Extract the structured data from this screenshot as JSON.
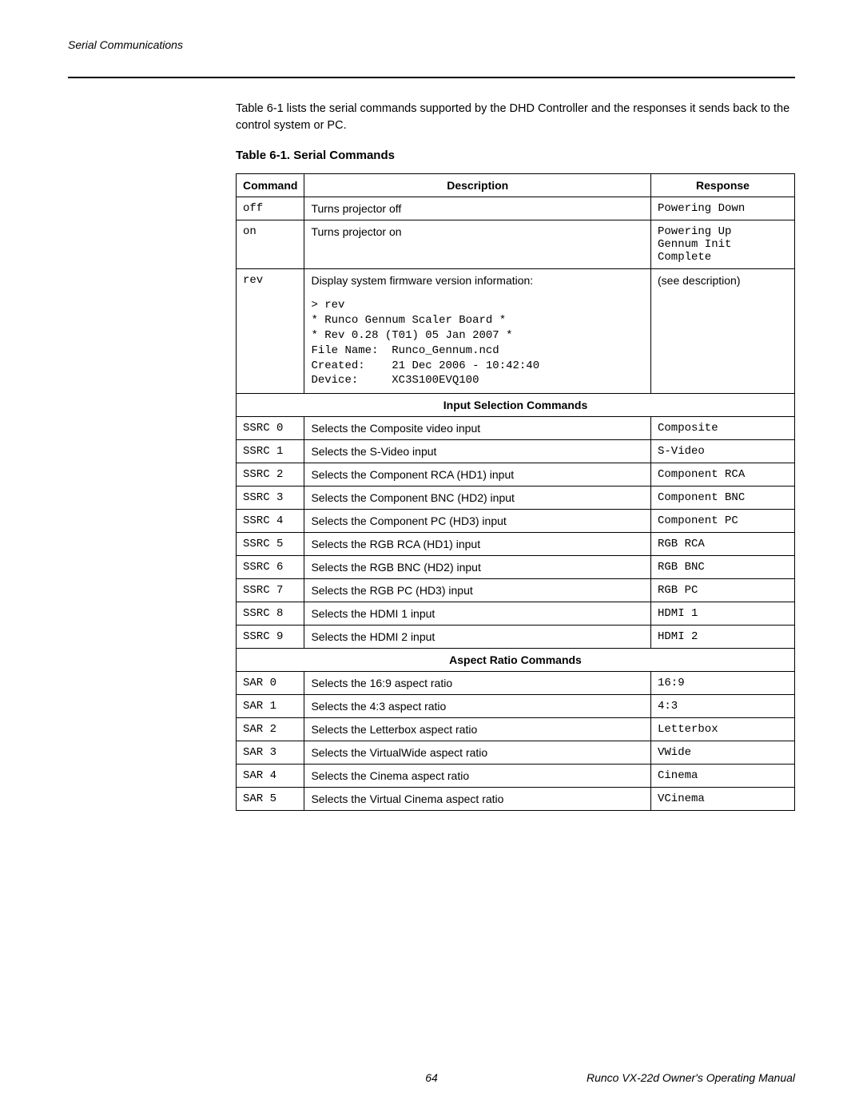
{
  "header": {
    "section": "Serial Communications"
  },
  "intro": "Table 6-1 lists the serial commands supported by the DHD Controller and the responses it sends back to the control system or PC.",
  "table_title": "Table 6-1. Serial Commands",
  "columns": {
    "cmd": "Command",
    "desc": "Description",
    "resp": "Response"
  },
  "rows_main": [
    {
      "cmd": "off",
      "desc": "Turns projector off",
      "resp": "Powering Down"
    },
    {
      "cmd": "on",
      "desc": "Turns projector on",
      "resp": "Powering Up\nGennum Init\nComplete"
    }
  ],
  "rev_row": {
    "cmd": "rev",
    "desc_intro": "Display system firmware version information:",
    "desc_block": "> rev\n* Runco Gennum Scaler Board *\n* Rev 0.28 (T01) 05 Jan 2007 *\nFile Name:  Runco_Gennum.ncd\nCreated:    21 Dec 2006 - 10:42:40\nDevice:     XC3S100EVQ100",
    "resp": "(see description)"
  },
  "section_input": "Input Selection Commands",
  "rows_input": [
    {
      "cmd": "SSRC 0",
      "desc": "Selects the Composite video input",
      "resp": "Composite"
    },
    {
      "cmd": "SSRC 1",
      "desc": "Selects the S-Video input",
      "resp": "S-Video"
    },
    {
      "cmd": "SSRC 2",
      "desc": "Selects the Component RCA (HD1) input",
      "resp": "Component RCA"
    },
    {
      "cmd": "SSRC 3",
      "desc": "Selects the Component BNC (HD2) input",
      "resp": "Component BNC"
    },
    {
      "cmd": "SSRC 4",
      "desc": "Selects the Component PC (HD3) input",
      "resp": "Component PC"
    },
    {
      "cmd": "SSRC 5",
      "desc": "Selects the RGB RCA (HD1) input",
      "resp": "RGB RCA"
    },
    {
      "cmd": "SSRC 6",
      "desc": "Selects the RGB BNC (HD2) input",
      "resp": "RGB BNC"
    },
    {
      "cmd": "SSRC 7",
      "desc": "Selects the RGB PC (HD3) input",
      "resp": "RGB PC"
    },
    {
      "cmd": "SSRC 8",
      "desc": "Selects the HDMI 1 input",
      "resp": "HDMI 1"
    },
    {
      "cmd": "SSRC 9",
      "desc": "Selects the HDMI 2 input",
      "resp": "HDMI 2"
    }
  ],
  "section_aspect": "Aspect Ratio Commands",
  "rows_aspect": [
    {
      "cmd": "SAR 0",
      "desc": "Selects the 16:9 aspect ratio",
      "resp": "16:9"
    },
    {
      "cmd": "SAR 1",
      "desc": "Selects the 4:3 aspect ratio",
      "resp": "4:3"
    },
    {
      "cmd": "SAR 2",
      "desc": "Selects the Letterbox aspect ratio",
      "resp": "Letterbox"
    },
    {
      "cmd": "SAR 3",
      "desc": "Selects the VirtualWide aspect ratio",
      "resp": "VWide"
    },
    {
      "cmd": "SAR 4",
      "desc": "Selects the Cinema aspect ratio",
      "resp": "Cinema"
    },
    {
      "cmd": "SAR 5",
      "desc": "Selects the Virtual Cinema aspect ratio",
      "resp": "VCinema"
    }
  ],
  "footer": {
    "page": "64",
    "doc": "Runco VX-22d Owner's Operating Manual"
  }
}
